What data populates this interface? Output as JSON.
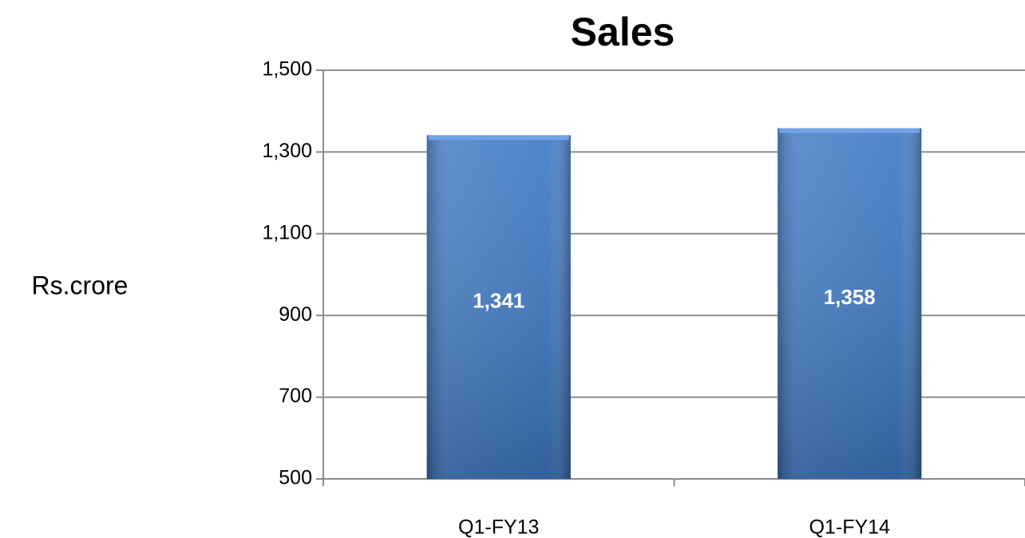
{
  "chart_data": {
    "type": "bar",
    "title": "Sales",
    "ylabel": "Rs.crore",
    "categories": [
      "Q1-FY13",
      "Q1-FY14"
    ],
    "values": [
      1341,
      1358
    ],
    "value_labels": [
      "1,341",
      "1,358"
    ],
    "color": "#3d78c4",
    "ylim": [
      500,
      1500
    ],
    "yticks": [
      500,
      700,
      900,
      {
        "value": 1100,
        "label": "1,100"
      },
      {
        "value": 1300,
        "label": "1,300"
      },
      {
        "value": 1500,
        "label": "1,500"
      }
    ],
    "grid": true
  }
}
